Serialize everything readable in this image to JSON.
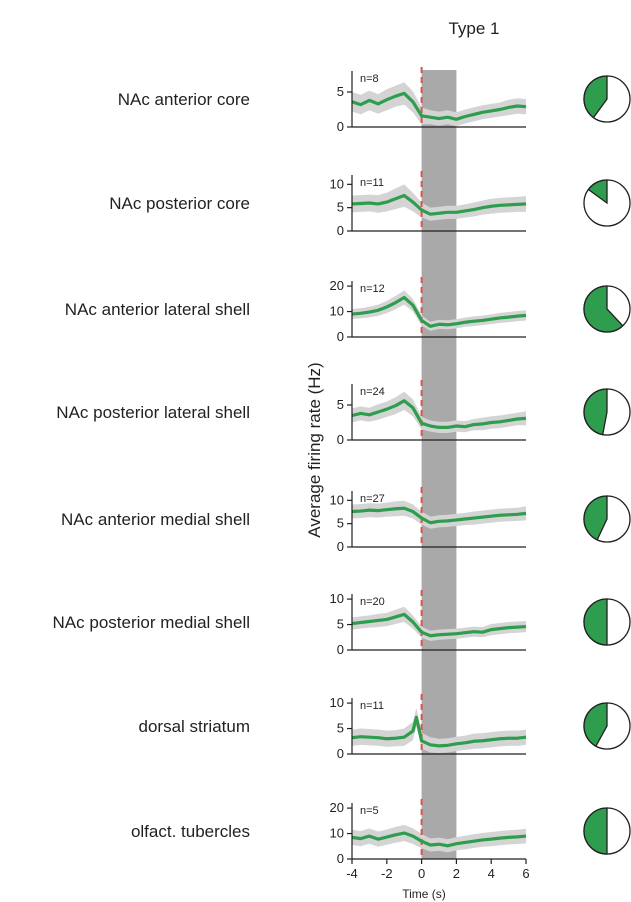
{
  "figure": {
    "title": "Type 1",
    "ylabel": "Average firing rate (Hz)",
    "xlabel": "Time (s)"
  },
  "colors": {
    "mean_line": "#2e9d4e",
    "sem_band": "#d4d4d4",
    "stimulus_shade": "#a9a9a9",
    "onset_marker": "#d9534f",
    "pie_fill": "#2e9d4e",
    "pie_rest": "#ffffff"
  },
  "chart_data": [
    {
      "type": "line",
      "region": "NAc anterior core",
      "n_label": "n=8",
      "ylim": [
        0,
        8
      ],
      "yticks": [
        0,
        5
      ],
      "x": [
        -4,
        -3.5,
        -3,
        -2.5,
        -2,
        -1.5,
        -1,
        -0.5,
        0,
        0.5,
        1,
        1.5,
        2,
        2.5,
        3,
        3.5,
        4,
        4.5,
        5,
        5.5,
        6
      ],
      "mean": [
        3.6,
        3.2,
        3.8,
        3.3,
        3.9,
        4.4,
        4.8,
        3.6,
        1.6,
        1.4,
        1.2,
        1.4,
        1.1,
        1.5,
        1.8,
        2.1,
        2.3,
        2.5,
        2.8,
        3.0,
        2.9
      ],
      "sem": [
        1.4,
        1.4,
        1.4,
        1.4,
        1.5,
        1.5,
        1.6,
        1.5,
        1.2,
        1.0,
        1.0,
        1.0,
        1.0,
        1.0,
        1.0,
        1.0,
        1.0,
        1.0,
        1.1,
        1.1,
        1.1
      ],
      "pie_fraction": 0.4
    },
    {
      "type": "line",
      "region": "NAc posterior core",
      "n_label": "n=11",
      "ylim": [
        0,
        12
      ],
      "yticks": [
        0,
        5,
        10
      ],
      "x": [
        -4,
        -3.5,
        -3,
        -2.5,
        -2,
        -1.5,
        -1,
        -0.5,
        0,
        0.5,
        1,
        1.5,
        2,
        2.5,
        3,
        3.5,
        4,
        4.5,
        5,
        5.5,
        6
      ],
      "mean": [
        5.8,
        5.9,
        6.0,
        5.8,
        6.2,
        6.9,
        7.6,
        6.2,
        4.5,
        3.6,
        3.8,
        4.0,
        4.0,
        4.3,
        4.6,
        5.0,
        5.3,
        5.5,
        5.6,
        5.7,
        5.8
      ],
      "sem": [
        1.8,
        1.8,
        1.8,
        1.9,
        2.0,
        2.2,
        2.4,
        2.0,
        1.6,
        1.4,
        1.4,
        1.4,
        1.4,
        1.4,
        1.5,
        1.5,
        1.6,
        1.6,
        1.6,
        1.6,
        1.7
      ],
      "pie_fraction": 0.15
    },
    {
      "type": "line",
      "region": "NAc anterior lateral shell",
      "n_label": "n=12",
      "ylim": [
        0,
        22
      ],
      "yticks": [
        0,
        10,
        20
      ],
      "x": [
        -4,
        -3.5,
        -3,
        -2.5,
        -2,
        -1.5,
        -1,
        -0.5,
        0,
        0.5,
        1,
        1.5,
        2,
        2.5,
        3,
        3.5,
        4,
        4.5,
        5,
        5.5,
        6
      ],
      "mean": [
        9.0,
        9.3,
        9.8,
        10.5,
        11.8,
        13.5,
        15.5,
        12.5,
        6.5,
        4.2,
        5.0,
        4.8,
        5.2,
        5.8,
        6.2,
        6.5,
        7.0,
        7.5,
        7.8,
        8.2,
        8.5
      ],
      "sem": [
        2.0,
        2.0,
        2.1,
        2.2,
        2.4,
        2.6,
        2.8,
        2.5,
        2.0,
        1.8,
        1.8,
        1.8,
        1.8,
        1.8,
        1.9,
        1.9,
        1.9,
        2.0,
        2.0,
        2.0,
        2.0
      ],
      "pie_fraction": 0.62
    },
    {
      "type": "line",
      "region": "NAc posterior lateral shell",
      "n_label": "n=24",
      "ylim": [
        0,
        8
      ],
      "yticks": [
        0,
        5
      ],
      "x": [
        -4,
        -3.5,
        -3,
        -2.5,
        -2,
        -1.5,
        -1,
        -0.5,
        0,
        0.5,
        1,
        1.5,
        2,
        2.5,
        3,
        3.5,
        4,
        4.5,
        5,
        5.5,
        6
      ],
      "mean": [
        3.5,
        3.8,
        3.6,
        4.0,
        4.4,
        4.9,
        5.6,
        4.6,
        2.4,
        2.0,
        1.8,
        1.8,
        2.0,
        1.9,
        2.2,
        2.3,
        2.5,
        2.6,
        2.8,
        3.0,
        3.1
      ],
      "sem": [
        1.0,
        1.0,
        1.0,
        1.1,
        1.1,
        1.2,
        1.3,
        1.2,
        0.9,
        0.8,
        0.8,
        0.8,
        0.8,
        0.8,
        0.8,
        0.9,
        0.9,
        0.9,
        0.9,
        0.9,
        1.0
      ],
      "pie_fraction": 0.47
    },
    {
      "type": "line",
      "region": "NAc anterior medial shell",
      "n_label": "n=27",
      "ylim": [
        0,
        12
      ],
      "yticks": [
        0,
        5,
        10
      ],
      "x": [
        -4,
        -3.5,
        -3,
        -2.5,
        -2,
        -1.5,
        -1,
        -0.5,
        0,
        0.5,
        1,
        1.5,
        2,
        2.5,
        3,
        3.5,
        4,
        4.5,
        5,
        5.5,
        6
      ],
      "mean": [
        7.6,
        7.7,
        7.9,
        7.8,
        8.0,
        8.2,
        8.3,
        7.6,
        6.2,
        5.2,
        5.5,
        5.6,
        5.8,
        6.0,
        6.2,
        6.4,
        6.6,
        6.8,
        6.9,
        7.0,
        7.2
      ],
      "sem": [
        1.5,
        1.5,
        1.5,
        1.5,
        1.5,
        1.6,
        1.6,
        1.5,
        1.4,
        1.3,
        1.3,
        1.3,
        1.3,
        1.3,
        1.4,
        1.4,
        1.4,
        1.4,
        1.4,
        1.4,
        1.5
      ],
      "pie_fraction": 0.43
    },
    {
      "type": "line",
      "region": "NAc posterior medial shell",
      "n_label": "n=20",
      "ylim": [
        0,
        11
      ],
      "yticks": [
        0,
        5,
        10
      ],
      "x": [
        -4,
        -3.5,
        -3,
        -2.5,
        -2,
        -1.5,
        -1,
        -0.5,
        0,
        0.5,
        1,
        1.5,
        2,
        2.5,
        3,
        3.5,
        4,
        4.5,
        5,
        5.5,
        6
      ],
      "mean": [
        5.2,
        5.4,
        5.6,
        5.8,
        6.0,
        6.5,
        7.0,
        5.5,
        3.5,
        2.8,
        3.0,
        3.1,
        3.2,
        3.4,
        3.6,
        3.5,
        4.0,
        4.2,
        4.4,
        4.5,
        4.6
      ],
      "sem": [
        1.2,
        1.2,
        1.2,
        1.3,
        1.3,
        1.4,
        1.5,
        1.3,
        1.1,
        1.0,
        1.0,
        1.0,
        1.0,
        1.0,
        1.0,
        1.0,
        1.1,
        1.1,
        1.1,
        1.1,
        1.1
      ],
      "pie_fraction": 0.5
    },
    {
      "type": "line",
      "region": "dorsal striatum",
      "n_label": "n=11",
      "ylim": [
        0,
        11
      ],
      "yticks": [
        0,
        5,
        10
      ],
      "x": [
        -4,
        -3.5,
        -3,
        -2.5,
        -2,
        -1.5,
        -1,
        -0.5,
        -0.3,
        0,
        0.5,
        1,
        1.5,
        2,
        2.5,
        3,
        3.5,
        4,
        4.5,
        5,
        5.5,
        6
      ],
      "mean": [
        3.2,
        3.4,
        3.3,
        3.2,
        3.0,
        3.1,
        3.3,
        4.5,
        7.2,
        2.6,
        1.8,
        1.6,
        1.7,
        2.0,
        2.2,
        2.5,
        2.6,
        2.8,
        3.0,
        3.1,
        3.1,
        3.3
      ],
      "sem": [
        1.6,
        1.6,
        1.6,
        1.6,
        1.6,
        1.6,
        1.7,
        1.8,
        1.8,
        1.6,
        1.5,
        1.4,
        1.4,
        1.4,
        1.4,
        1.5,
        1.5,
        1.5,
        1.5,
        1.5,
        1.5,
        1.5
      ],
      "pie_fraction": 0.42
    },
    {
      "type": "line",
      "region": "olfact. tubercles",
      "n_label": "n=5",
      "ylim": [
        0,
        22
      ],
      "yticks": [
        0,
        10,
        20
      ],
      "x": [
        -4,
        -3.5,
        -3,
        -2.5,
        -2,
        -1.5,
        -1,
        -0.5,
        0,
        0.5,
        1,
        1.5,
        2,
        2.5,
        3,
        3.5,
        4,
        4.5,
        5,
        5.5,
        6
      ],
      "mean": [
        8.5,
        8.0,
        9.0,
        7.8,
        8.6,
        9.5,
        10.2,
        9.0,
        7.0,
        5.5,
        5.8,
        5.2,
        6.0,
        6.5,
        7.0,
        7.5,
        7.8,
        8.2,
        8.5,
        8.7,
        9.0
      ],
      "sem": [
        3.0,
        3.0,
        3.0,
        3.0,
        3.0,
        3.1,
        3.2,
        3.1,
        2.8,
        2.6,
        2.6,
        2.6,
        2.6,
        2.7,
        2.7,
        2.7,
        2.8,
        2.8,
        2.8,
        2.8,
        2.9
      ],
      "pie_fraction": 0.5
    }
  ],
  "x_axis": {
    "ticks": [
      -4,
      -2,
      0,
      2,
      4,
      6
    ],
    "range": [
      -4,
      6
    ],
    "shade_range": [
      0,
      2
    ],
    "onset": 0
  }
}
